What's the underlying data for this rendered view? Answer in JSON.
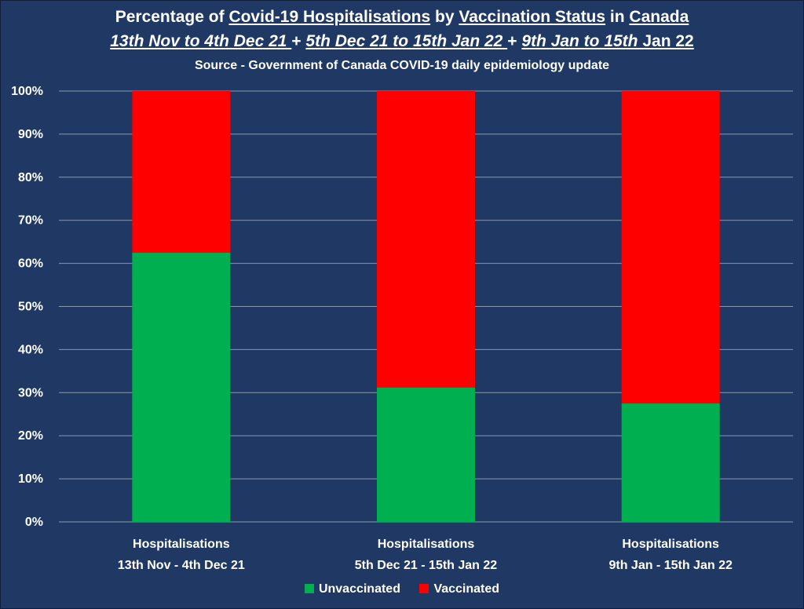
{
  "title": {
    "part1": "Percentage of ",
    "part2": "Covid-19 Hospitalisations",
    "part3": " by ",
    "part4": "Vaccination Status",
    "part5": " in ",
    "part6": "Canada"
  },
  "subtitle": {
    "range1": "13th Nov to 4th Dec 21 ",
    "sep1": " + ",
    "range2": "5th Dec 21 to 15th Jan 22 ",
    "sep2": " + ",
    "range3a": "9th Jan to 15th",
    "range3b": " Jan 22"
  },
  "source": "Source - Government of Canada COVID-19 daily epidemiology update",
  "legend": {
    "unvaccinated": "Unvaccinated",
    "vaccinated": "Vaccinated"
  },
  "chart_data": {
    "type": "bar",
    "stacked": true,
    "categories": [
      [
        "Hospitalisations",
        "13th Nov - 4th Dec 21"
      ],
      [
        "Hospitalisations",
        "5th Dec 21 - 15th Jan 22"
      ],
      [
        "Hospitalisations",
        "9th Jan - 15th Jan 22"
      ]
    ],
    "series": [
      {
        "name": "Unvaccinated",
        "color": "#00b050",
        "values": [
          62.5,
          31.2,
          27.5
        ]
      },
      {
        "name": "Vaccinated",
        "color": "#ff0000",
        "values": [
          37.5,
          68.8,
          72.5
        ]
      }
    ],
    "ylim": [
      0,
      100
    ],
    "yticks": [
      "0%",
      "10%",
      "20%",
      "30%",
      "40%",
      "50%",
      "60%",
      "70%",
      "80%",
      "90%",
      "100%"
    ],
    "grid": true,
    "legend_position": "bottom"
  }
}
